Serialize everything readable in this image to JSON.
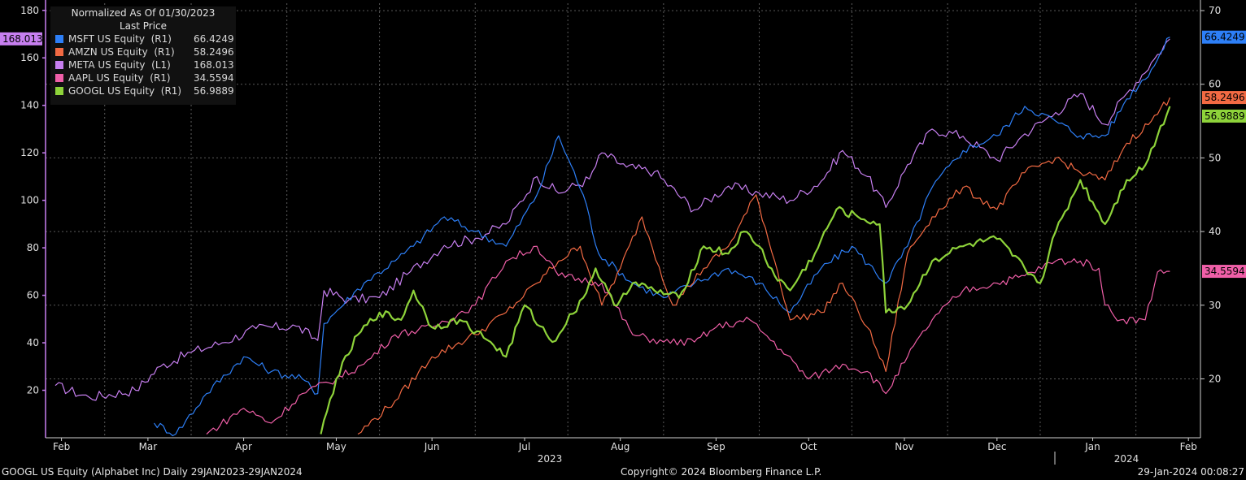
{
  "legend": {
    "title": "Normalized As Of 01/30/2023",
    "subtitle": "Last Price",
    "items": [
      {
        "name": "MSFT US Equity  (R1)",
        "value": "66.4249",
        "color": "#2d7ff7"
      },
      {
        "name": "AMZN US Equity  (R1)",
        "value": "58.2496",
        "color": "#f26a43"
      },
      {
        "name": "META US Equity  (L1)",
        "value": "168.013",
        "color": "#c77ff0"
      },
      {
        "name": "AAPL US Equity  (R1)",
        "value": "34.5594",
        "color": "#f05fa8"
      },
      {
        "name": "GOOGL US Equity  (R1)",
        "value": "56.9889",
        "color": "#8ed33a"
      }
    ]
  },
  "footer": {
    "left": "GOOGL US Equity (Alphabet Inc)  Daily 29JAN2023-29JAN2024",
    "center": "Copyright© 2024 Bloomberg Finance L.P.",
    "right": "29-Jan-2024 00:08:27"
  },
  "chart_data": {
    "type": "line",
    "x_months": [
      "Feb",
      "Mar",
      "Apr",
      "May",
      "Jun",
      "Jul",
      "Aug",
      "Sep",
      "Oct",
      "Nov",
      "Dec",
      "Jan",
      "Feb"
    ],
    "x_years": [
      "2023",
      "2024"
    ],
    "left_axis": {
      "ticks": [
        "20",
        "40",
        "60",
        "80",
        "100",
        "120",
        "140",
        "160",
        "180"
      ],
      "ylim": [
        0,
        183
      ]
    },
    "right_axis": {
      "ticks": [
        "20",
        "30",
        "40",
        "50",
        "60",
        "70"
      ],
      "ylim": [
        12,
        71
      ]
    },
    "last_value_labels": [
      {
        "series": "META",
        "text": "168.013",
        "axis": "left",
        "color": "#c77ff0"
      },
      {
        "series": "MSFT",
        "text": "66.4249",
        "axis": "right",
        "color": "#2d7ff7"
      },
      {
        "series": "AMZN",
        "text": "58.2496",
        "axis": "right",
        "color": "#f26a43"
      },
      {
        "series": "GOOGL",
        "text": "56.9889",
        "axis": "right",
        "color": "#8ed33a"
      },
      {
        "series": "AAPL",
        "text": "34.5594",
        "axis": "right",
        "color": "#f05fa8"
      }
    ],
    "series": [
      {
        "name": "META US Equity",
        "axis": "left",
        "color": "#c77ff0",
        "width": 1.2,
        "points": [
          [
            "2023-01-30",
            22
          ],
          [
            "2023-02-10",
            17
          ],
          [
            "2023-02-25",
            20
          ],
          [
            "2023-03-05",
            30
          ],
          [
            "2023-03-15",
            36
          ],
          [
            "2023-03-25",
            40
          ],
          [
            "2023-04-05",
            46
          ],
          [
            "2023-04-18",
            47
          ],
          [
            "2023-04-25",
            41
          ],
          [
            "2023-04-27",
            62
          ],
          [
            "2023-05-05",
            58
          ],
          [
            "2023-05-15",
            59
          ],
          [
            "2023-05-25",
            70
          ],
          [
            "2023-06-05",
            81
          ],
          [
            "2023-06-15",
            84
          ],
          [
            "2023-06-25",
            90
          ],
          [
            "2023-07-05",
            110
          ],
          [
            "2023-07-12",
            103
          ],
          [
            "2023-07-22",
            109
          ],
          [
            "2023-07-26",
            120
          ],
          [
            "2023-08-03",
            114
          ],
          [
            "2023-08-12",
            112
          ],
          [
            "2023-08-25",
            96
          ],
          [
            "2023-09-05",
            106
          ],
          [
            "2023-09-15",
            103
          ],
          [
            "2023-09-25",
            100
          ],
          [
            "2023-10-05",
            108
          ],
          [
            "2023-10-12",
            121
          ],
          [
            "2023-10-20",
            110
          ],
          [
            "2023-10-26",
            97
          ],
          [
            "2023-11-02",
            115
          ],
          [
            "2023-11-10",
            130
          ],
          [
            "2023-11-20",
            127
          ],
          [
            "2023-12-01",
            117
          ],
          [
            "2023-12-10",
            128
          ],
          [
            "2023-12-20",
            137
          ],
          [
            "2023-12-28",
            145
          ],
          [
            "2024-01-05",
            132
          ],
          [
            "2024-01-12",
            145
          ],
          [
            "2024-01-20",
            158
          ],
          [
            "2024-01-26",
            168
          ]
        ]
      },
      {
        "name": "MSFT US Equity",
        "axis": "right",
        "color": "#2d7ff7",
        "width": 1.2,
        "points": [
          [
            "2023-03-03",
            14
          ],
          [
            "2023-03-10",
            12.5
          ],
          [
            "2023-03-20",
            18
          ],
          [
            "2023-04-01",
            23
          ],
          [
            "2023-04-10",
            21
          ],
          [
            "2023-04-20",
            20
          ],
          [
            "2023-04-25",
            18
          ],
          [
            "2023-04-27",
            27.5
          ],
          [
            "2023-05-10",
            33
          ],
          [
            "2023-05-20",
            36
          ],
          [
            "2023-05-26",
            38
          ],
          [
            "2023-06-05",
            42
          ],
          [
            "2023-06-15",
            40
          ],
          [
            "2023-06-25",
            38
          ],
          [
            "2023-07-05",
            45
          ],
          [
            "2023-07-12",
            53
          ],
          [
            "2023-07-20",
            45
          ],
          [
            "2023-07-25",
            37
          ],
          [
            "2023-08-05",
            33
          ],
          [
            "2023-08-15",
            31
          ],
          [
            "2023-08-25",
            33
          ],
          [
            "2023-09-05",
            35
          ],
          [
            "2023-09-15",
            33
          ],
          [
            "2023-09-25",
            29
          ],
          [
            "2023-10-05",
            35
          ],
          [
            "2023-10-15",
            38
          ],
          [
            "2023-10-26",
            33
          ],
          [
            "2023-11-02",
            38
          ],
          [
            "2023-11-10",
            46
          ],
          [
            "2023-11-20",
            51
          ],
          [
            "2023-12-01",
            53
          ],
          [
            "2023-12-10",
            57
          ],
          [
            "2023-12-20",
            55
          ],
          [
            "2023-12-28",
            53
          ],
          [
            "2024-01-05",
            53
          ],
          [
            "2024-01-12",
            58
          ],
          [
            "2024-01-20",
            62
          ],
          [
            "2024-01-26",
            66.4
          ]
        ]
      },
      {
        "name": "AMZN US Equity",
        "axis": "right",
        "color": "#f26a43",
        "width": 1.2,
        "points": [
          [
            "2023-05-08",
            12.5
          ],
          [
            "2023-05-20",
            17
          ],
          [
            "2023-06-01",
            23
          ],
          [
            "2023-06-15",
            26
          ],
          [
            "2023-06-25",
            29
          ],
          [
            "2023-07-05",
            33
          ],
          [
            "2023-07-12",
            36
          ],
          [
            "2023-07-19",
            38
          ],
          [
            "2023-07-26",
            30
          ],
          [
            "2023-08-01",
            35
          ],
          [
            "2023-08-08",
            42
          ],
          [
            "2023-08-18",
            30
          ],
          [
            "2023-08-28",
            35
          ],
          [
            "2023-09-05",
            38
          ],
          [
            "2023-09-14",
            45
          ],
          [
            "2023-09-20",
            36
          ],
          [
            "2023-09-25",
            28
          ],
          [
            "2023-10-05",
            29
          ],
          [
            "2023-10-12",
            33
          ],
          [
            "2023-10-20",
            27
          ],
          [
            "2023-10-26",
            21
          ],
          [
            "2023-11-02",
            37
          ],
          [
            "2023-11-10",
            42
          ],
          [
            "2023-11-20",
            46
          ],
          [
            "2023-12-01",
            43
          ],
          [
            "2023-12-10",
            48
          ],
          [
            "2023-12-20",
            50
          ],
          [
            "2023-12-28",
            48
          ],
          [
            "2024-01-05",
            47
          ],
          [
            "2024-01-12",
            52
          ],
          [
            "2024-01-20",
            55
          ],
          [
            "2024-01-26",
            58.2
          ]
        ]
      },
      {
        "name": "AAPL US Equity",
        "axis": "right",
        "color": "#f05fa8",
        "width": 1.2,
        "points": [
          [
            "2023-03-20",
            12.5
          ],
          [
            "2023-04-01",
            16
          ],
          [
            "2023-04-10",
            14
          ],
          [
            "2023-04-20",
            18
          ],
          [
            "2023-05-01",
            20
          ],
          [
            "2023-05-10",
            22
          ],
          [
            "2023-05-20",
            26
          ],
          [
            "2023-06-01",
            27
          ],
          [
            "2023-06-15",
            30
          ],
          [
            "2023-06-25",
            36
          ],
          [
            "2023-07-05",
            38
          ],
          [
            "2023-07-12",
            34
          ],
          [
            "2023-07-26",
            33
          ],
          [
            "2023-08-05",
            26
          ],
          [
            "2023-08-15",
            25
          ],
          [
            "2023-08-25",
            25
          ],
          [
            "2023-09-01",
            27
          ],
          [
            "2023-09-12",
            28
          ],
          [
            "2023-09-22",
            24
          ],
          [
            "2023-10-01",
            20
          ],
          [
            "2023-10-12",
            22
          ],
          [
            "2023-10-20",
            21
          ],
          [
            "2023-10-26",
            18
          ],
          [
            "2023-11-02",
            23
          ],
          [
            "2023-11-10",
            28
          ],
          [
            "2023-11-20",
            32
          ],
          [
            "2023-12-01",
            33
          ],
          [
            "2023-12-10",
            34
          ],
          [
            "2023-12-20",
            36
          ],
          [
            "2023-12-28",
            36
          ],
          [
            "2024-01-03",
            35
          ],
          [
            "2024-01-05",
            30
          ],
          [
            "2024-01-10",
            28
          ],
          [
            "2024-01-18",
            28
          ],
          [
            "2024-01-22",
            34.5
          ],
          [
            "2024-01-26",
            34.6
          ]
        ]
      },
      {
        "name": "GOOGL US Equity",
        "axis": "right",
        "color": "#8ed33a",
        "width": 2.2,
        "points": [
          [
            "2023-04-26",
            12.5
          ],
          [
            "2023-05-01",
            20
          ],
          [
            "2023-05-08",
            26
          ],
          [
            "2023-05-15",
            29
          ],
          [
            "2023-05-22",
            28
          ],
          [
            "2023-05-26",
            32
          ],
          [
            "2023-06-01",
            27
          ],
          [
            "2023-06-10",
            28
          ],
          [
            "2023-06-20",
            25
          ],
          [
            "2023-06-25",
            23
          ],
          [
            "2023-07-01",
            30
          ],
          [
            "2023-07-10",
            25
          ],
          [
            "2023-07-20",
            31
          ],
          [
            "2023-07-24",
            35
          ],
          [
            "2023-07-30",
            30
          ],
          [
            "2023-08-05",
            33
          ],
          [
            "2023-08-12",
            32
          ],
          [
            "2023-08-20",
            31
          ],
          [
            "2023-08-28",
            38
          ],
          [
            "2023-09-05",
            37
          ],
          [
            "2023-09-10",
            40
          ],
          [
            "2023-09-15",
            38
          ],
          [
            "2023-09-20",
            34
          ],
          [
            "2023-09-25",
            32
          ],
          [
            "2023-10-03",
            37
          ],
          [
            "2023-10-10",
            43
          ],
          [
            "2023-10-17",
            42
          ],
          [
            "2023-10-24",
            41
          ],
          [
            "2023-10-26",
            29
          ],
          [
            "2023-11-02",
            30
          ],
          [
            "2023-11-10",
            36
          ],
          [
            "2023-11-20",
            38
          ],
          [
            "2023-12-01",
            39
          ],
          [
            "2023-12-10",
            35
          ],
          [
            "2023-12-15",
            33
          ],
          [
            "2023-12-20",
            40
          ],
          [
            "2023-12-28",
            47
          ],
          [
            "2024-01-05",
            41
          ],
          [
            "2024-01-12",
            47
          ],
          [
            "2024-01-18",
            49
          ],
          [
            "2024-01-22",
            53
          ],
          [
            "2024-01-26",
            57
          ]
        ]
      }
    ]
  }
}
